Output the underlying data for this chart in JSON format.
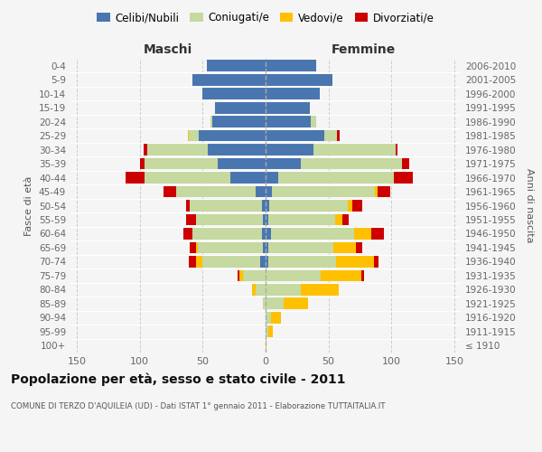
{
  "age_groups": [
    "100+",
    "95-99",
    "90-94",
    "85-89",
    "80-84",
    "75-79",
    "70-74",
    "65-69",
    "60-64",
    "55-59",
    "50-54",
    "45-49",
    "40-44",
    "35-39",
    "30-34",
    "25-29",
    "20-24",
    "15-19",
    "10-14",
    "5-9",
    "0-4"
  ],
  "birth_years": [
    "≤ 1910",
    "1911-1915",
    "1916-1920",
    "1921-1925",
    "1926-1930",
    "1931-1935",
    "1936-1940",
    "1941-1945",
    "1946-1950",
    "1951-1955",
    "1956-1960",
    "1961-1965",
    "1966-1970",
    "1971-1975",
    "1976-1980",
    "1981-1985",
    "1986-1990",
    "1991-1995",
    "1996-2000",
    "2001-2005",
    "2006-2010"
  ],
  "male_celibi": [
    0,
    0,
    0,
    0,
    0,
    0,
    4,
    2,
    3,
    2,
    3,
    8,
    28,
    38,
    46,
    53,
    42,
    40,
    50,
    58,
    47
  ],
  "male_coniugati": [
    0,
    0,
    0,
    2,
    8,
    18,
    46,
    52,
    55,
    53,
    57,
    63,
    68,
    58,
    48,
    8,
    2,
    0,
    0,
    0,
    0
  ],
  "male_vedovi": [
    0,
    0,
    0,
    0,
    3,
    3,
    5,
    1,
    0,
    0,
    0,
    0,
    0,
    0,
    0,
    1,
    0,
    0,
    0,
    0,
    0
  ],
  "male_divorziati": [
    0,
    0,
    0,
    0,
    0,
    1,
    6,
    5,
    7,
    8,
    3,
    10,
    15,
    4,
    3,
    0,
    0,
    0,
    0,
    0,
    0
  ],
  "female_nubili": [
    0,
    0,
    0,
    0,
    0,
    0,
    2,
    2,
    4,
    2,
    3,
    5,
    10,
    28,
    38,
    47,
    36,
    35,
    43,
    53,
    40
  ],
  "female_coniugate": [
    0,
    2,
    4,
    14,
    28,
    44,
    54,
    52,
    66,
    53,
    62,
    82,
    92,
    80,
    65,
    10,
    4,
    0,
    0,
    0,
    0
  ],
  "female_vedove": [
    1,
    4,
    8,
    20,
    30,
    32,
    30,
    18,
    14,
    6,
    4,
    2,
    0,
    0,
    0,
    0,
    0,
    0,
    0,
    0,
    0
  ],
  "female_divorziate": [
    0,
    0,
    0,
    0,
    0,
    2,
    4,
    5,
    10,
    5,
    8,
    10,
    15,
    6,
    2,
    2,
    0,
    0,
    0,
    0,
    0
  ],
  "colors": {
    "celibi": "#4a76b0",
    "coniugati": "#c5d9a0",
    "vedovi": "#ffc000",
    "divorziati": "#cc0000"
  },
  "title": "Popolazione per età, sesso e stato civile - 2011",
  "subtitle": "COMUNE DI TERZO D'AQUILEIA (UD) - Dati ISTAT 1° gennaio 2011 - Elaborazione TUTTAITALIA.IT",
  "xlim": 155,
  "background_color": "#f5f5f5",
  "grid_color": "#cccccc"
}
